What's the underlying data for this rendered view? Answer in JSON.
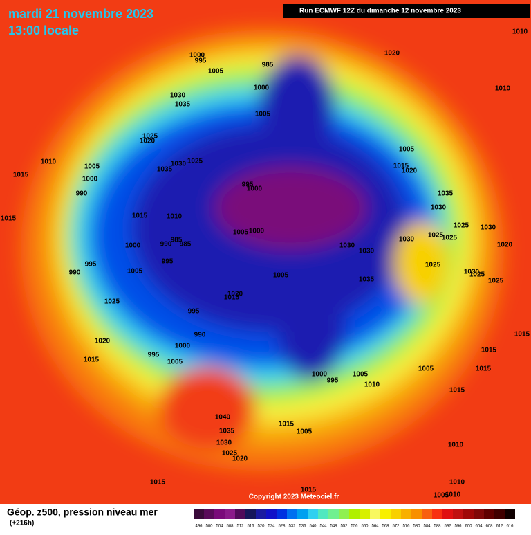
{
  "header": {
    "title": "mardi 21 novembre 2023",
    "time": "13:00 locale",
    "run": "Run ECMWF 12Z du dimanche 12 novembre 2023"
  },
  "copyright": "Copyright 2023 Meteociel.fr",
  "legend": {
    "title": "Géop. z500, pression niveau mer",
    "lead": "(+216h)",
    "values": [
      496,
      500,
      504,
      508,
      512,
      516,
      520,
      524,
      528,
      532,
      536,
      540,
      544,
      548,
      552,
      556,
      560,
      564,
      568,
      572,
      576,
      580,
      584,
      588,
      592,
      596,
      600,
      604,
      608,
      612,
      616
    ],
    "colors": [
      "#3a0a3a",
      "#5a0a5a",
      "#7a0a7a",
      "#8a1a8a",
      "#500a5a",
      "#16165a",
      "#1a1aa0",
      "#1010c8",
      "#0030e0",
      "#0070f0",
      "#00a0f0",
      "#30d0f0",
      "#50e8c0",
      "#70f090",
      "#90f050",
      "#b0f000",
      "#d8f000",
      "#f8f860",
      "#f8f000",
      "#f8d000",
      "#f8b000",
      "#f89000",
      "#f86010",
      "#f83010",
      "#e01010",
      "#c01010",
      "#a00808",
      "#800808",
      "#600000",
      "#400000",
      "#100000"
    ]
  },
  "isobars": [
    1000,
    995,
    1005,
    1020,
    1010,
    1010,
    985,
    1000,
    1030,
    1035,
    1005,
    1025,
    1020,
    1010,
    1005,
    1035,
    1030,
    1025,
    1015,
    1000,
    990,
    995,
    1000,
    1005,
    1015,
    1020,
    1035,
    1030,
    1015,
    1015,
    1010,
    985,
    990,
    985,
    1005,
    1000,
    1025,
    1030,
    1025,
    1025,
    1030,
    1020,
    1000,
    1030,
    1030,
    995,
    995,
    990,
    1005,
    1025,
    1030,
    1025,
    1005,
    1035,
    1025,
    1020,
    1015,
    1025,
    995,
    990,
    1020,
    1000,
    995,
    1015,
    1005,
    1000,
    995,
    1005,
    1010,
    1005,
    1015,
    1015,
    1015,
    1040,
    1035,
    1015,
    1005,
    1030,
    1025,
    1020,
    1010,
    1010,
    1015,
    1015,
    1005,
    1010,
    1015
  ]
}
